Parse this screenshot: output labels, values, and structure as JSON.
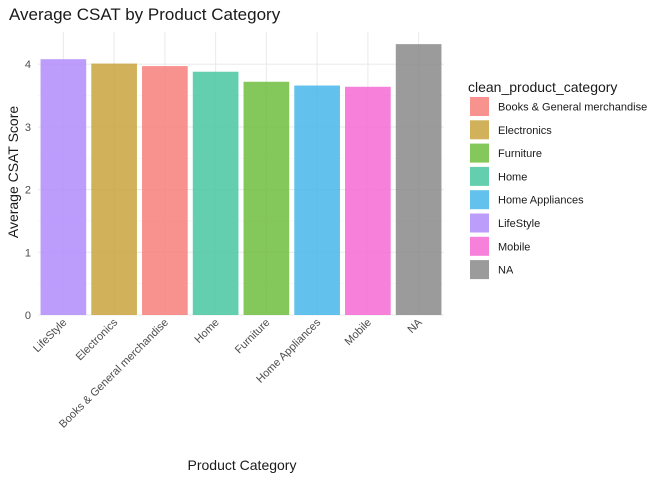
{
  "chart_data": {
    "type": "bar",
    "title": "Average CSAT by Product Category",
    "xlabel": "Product Category",
    "ylabel": "Average CSAT Score",
    "ylim": [
      0,
      4.5
    ],
    "yticks": [
      0,
      1,
      2,
      3,
      4
    ],
    "grid": true,
    "legend_position": "right",
    "categories": [
      "LifeStyle",
      "Electronics",
      "Books & General merchandise",
      "Home",
      "Furniture",
      "Home Appliances",
      "Mobile",
      "NA"
    ],
    "values": [
      4.08,
      4.01,
      3.97,
      3.88,
      3.72,
      3.66,
      3.64,
      4.32
    ],
    "colors": [
      "#b08cfb",
      "#c9a43d",
      "#f67f7b",
      "#49c7a0",
      "#6fbd3e",
      "#48b7ea",
      "#f46ad4",
      "#8a8a8a"
    ],
    "legend": {
      "title": "clean_product_category",
      "entries": [
        {
          "label": "Books & General merchandise",
          "color": "#f67f7b"
        },
        {
          "label": "Electronics",
          "color": "#c9a43d"
        },
        {
          "label": "Furniture",
          "color": "#6fbd3e"
        },
        {
          "label": "Home",
          "color": "#49c7a0"
        },
        {
          "label": "Home Appliances",
          "color": "#48b7ea"
        },
        {
          "label": "LifeStyle",
          "color": "#b08cfb"
        },
        {
          "label": "Mobile",
          "color": "#f46ad4"
        },
        {
          "label": "NA",
          "color": "#8a8a8a"
        }
      ]
    }
  }
}
